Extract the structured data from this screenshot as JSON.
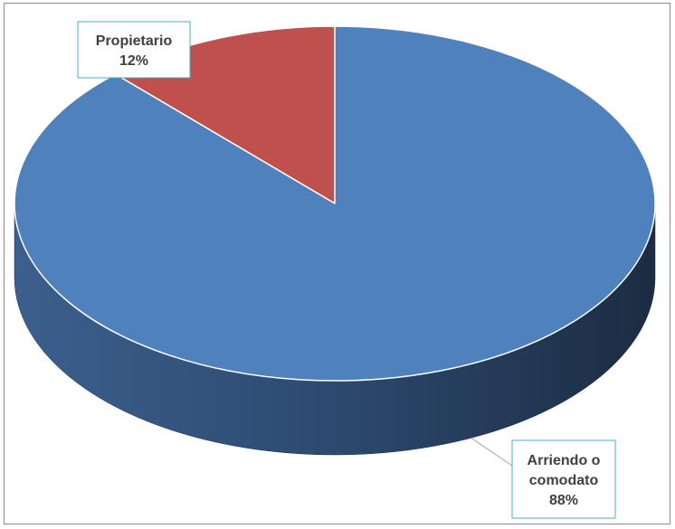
{
  "chart_data": {
    "type": "pie",
    "style": "3d",
    "title": "",
    "slices": [
      {
        "label": "Propietario",
        "value": 12,
        "value_text": "12%",
        "color": "#C0504D",
        "side_color": "#7a302e"
      },
      {
        "label": "Arriendo o comodato",
        "label_lines": [
          "Arriendo o",
          "comodato"
        ],
        "value": 88,
        "value_text": "88%",
        "color": "#4F81BD",
        "side_color": "#2a4466"
      }
    ],
    "data_labels": "category name and percentage, in bordered callout boxes with leader lines",
    "legend": "none"
  }
}
